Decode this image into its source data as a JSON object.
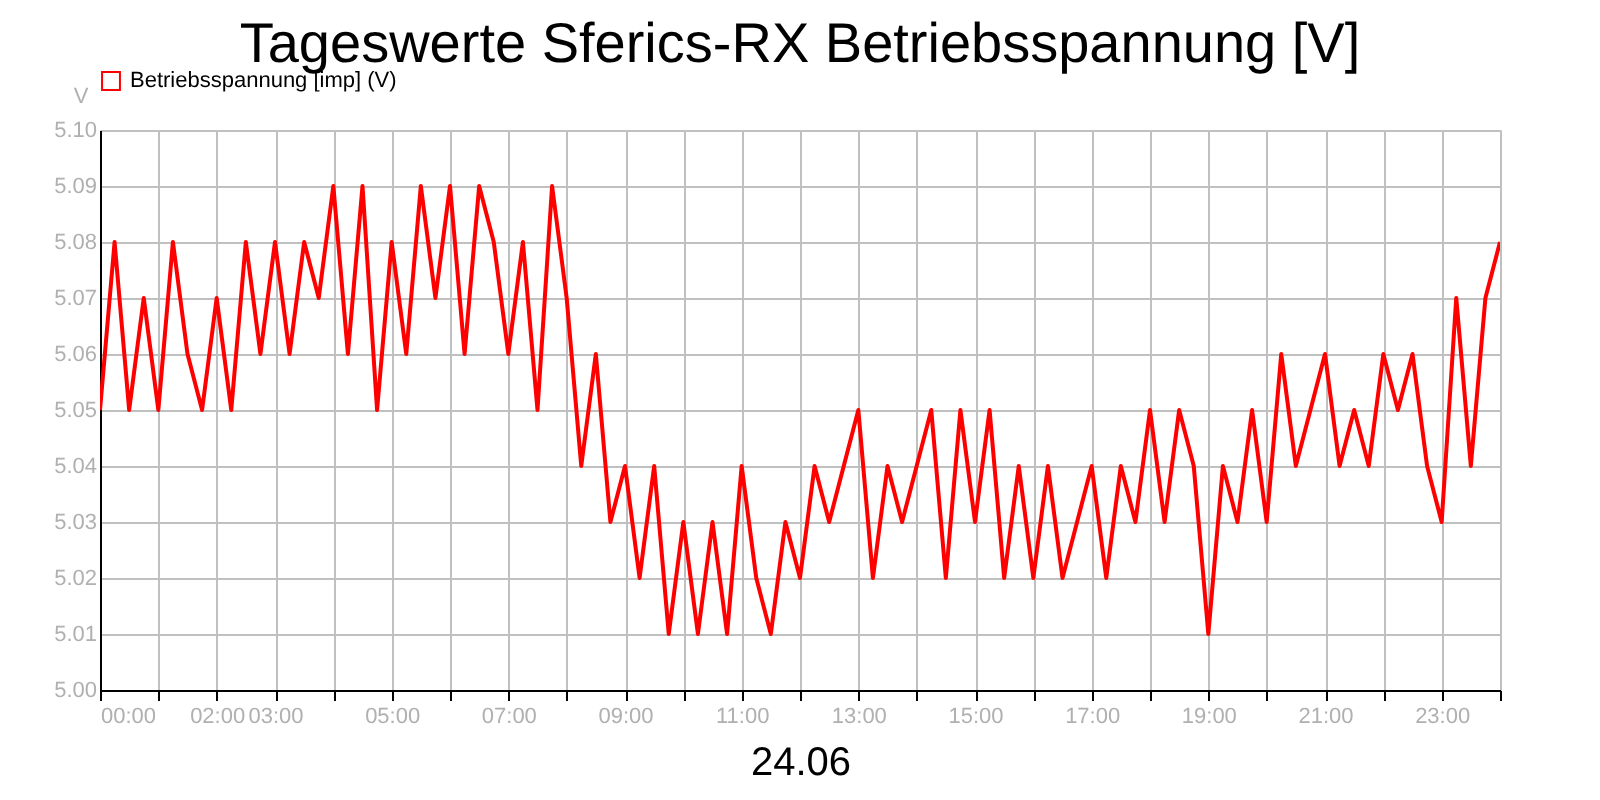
{
  "chart_data": {
    "type": "line",
    "title": "Tageswerte Sferics-RX Betriebsspannung [V]",
    "xlabel": "24.06",
    "ylabel": "V",
    "x": [
      0,
      0.25,
      0.5,
      0.75,
      1,
      1.25,
      1.5,
      1.75,
      2,
      2.25,
      2.5,
      2.75,
      3,
      3.25,
      3.5,
      3.75,
      4,
      4.25,
      4.5,
      4.75,
      5,
      5.25,
      5.5,
      5.75,
      6,
      6.25,
      6.5,
      6.75,
      7,
      7.25,
      7.5,
      7.75,
      8,
      8.25,
      8.5,
      8.75,
      9,
      9.25,
      9.5,
      9.75,
      10,
      10.25,
      10.5,
      10.75,
      11,
      11.25,
      11.5,
      11.75,
      12,
      12.25,
      12.5,
      12.75,
      13,
      13.25,
      13.5,
      13.75,
      14,
      14.25,
      14.5,
      14.75,
      15,
      15.25,
      15.5,
      15.75,
      16,
      16.25,
      16.5,
      16.75,
      17,
      17.25,
      17.5,
      17.75,
      18,
      18.25,
      18.5,
      18.75,
      19,
      19.25,
      19.5,
      19.75,
      20,
      20.25,
      20.5,
      20.75,
      21,
      21.25,
      21.5,
      21.75,
      22,
      22.25,
      22.5,
      22.75,
      23,
      23.25,
      23.5,
      23.75,
      24
    ],
    "series": [
      {
        "name": "Betriebsspannung [imp] (V)",
        "color": "#ff0000",
        "values": [
          5.05,
          5.08,
          5.05,
          5.07,
          5.05,
          5.08,
          5.06,
          5.05,
          5.07,
          5.05,
          5.08,
          5.06,
          5.08,
          5.06,
          5.08,
          5.07,
          5.09,
          5.06,
          5.09,
          5.05,
          5.08,
          5.06,
          5.09,
          5.07,
          5.09,
          5.06,
          5.09,
          5.08,
          5.06,
          5.08,
          5.05,
          5.09,
          5.07,
          5.04,
          5.06,
          5.03,
          5.04,
          5.02,
          5.04,
          5.01,
          5.03,
          5.01,
          5.03,
          5.01,
          5.04,
          5.02,
          5.01,
          5.03,
          5.02,
          5.04,
          5.03,
          5.04,
          5.05,
          5.02,
          5.04,
          5.03,
          5.04,
          5.05,
          5.02,
          5.05,
          5.03,
          5.05,
          5.02,
          5.04,
          5.02,
          5.04,
          5.02,
          5.03,
          5.04,
          5.02,
          5.04,
          5.03,
          5.05,
          5.03,
          5.05,
          5.04,
          5.01,
          5.04,
          5.03,
          5.05,
          5.03,
          5.06,
          5.04,
          5.05,
          5.06,
          5.04,
          5.05,
          5.04,
          5.06,
          5.05,
          5.06,
          5.04,
          5.03,
          5.07,
          5.04,
          5.07,
          5.08
        ]
      }
    ],
    "xlim": [
      0,
      24
    ],
    "xticks": [
      {
        "value": 0,
        "label": "00:00"
      },
      {
        "value": 1,
        "label": null
      },
      {
        "value": 2,
        "label": "02:00"
      },
      {
        "value": 3,
        "label": "03:00"
      },
      {
        "value": 4,
        "label": null
      },
      {
        "value": 5,
        "label": "05:00"
      },
      {
        "value": 6,
        "label": null
      },
      {
        "value": 7,
        "label": "07:00"
      },
      {
        "value": 8,
        "label": null
      },
      {
        "value": 9,
        "label": "09:00"
      },
      {
        "value": 10,
        "label": null
      },
      {
        "value": 11,
        "label": "11:00"
      },
      {
        "value": 12,
        "label": null
      },
      {
        "value": 13,
        "label": "13:00"
      },
      {
        "value": 14,
        "label": null
      },
      {
        "value": 15,
        "label": "15:00"
      },
      {
        "value": 16,
        "label": null
      },
      {
        "value": 17,
        "label": "17:00"
      },
      {
        "value": 18,
        "label": null
      },
      {
        "value": 19,
        "label": "19:00"
      },
      {
        "value": 20,
        "label": null
      },
      {
        "value": 21,
        "label": "21:00"
      },
      {
        "value": 22,
        "label": null
      },
      {
        "value": 23,
        "label": "23:00"
      },
      {
        "value": 24,
        "label": null
      }
    ],
    "ylim": [
      5.0,
      5.1
    ],
    "yticks": [
      {
        "value": 5.0,
        "label": "5.00"
      },
      5.01,
      5.02,
      5.03,
      5.04,
      5.05,
      5.06,
      5.07,
      5.08,
      5.09,
      {
        "value": 5.1,
        "label": "5.10"
      }
    ],
    "grid": true,
    "legend": "top left",
    "marker": "none",
    "line_style": "solid"
  }
}
